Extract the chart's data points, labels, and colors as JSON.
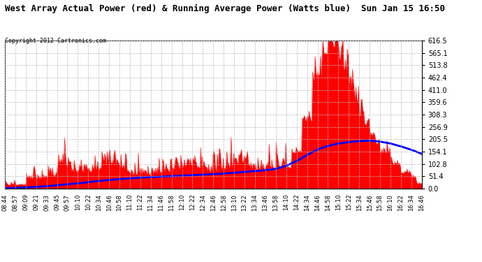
{
  "title": "West Array Actual Power (red) & Running Average Power (Watts blue)  Sun Jan 15 16:50",
  "copyright": "Copyright 2012 Cartronics.com",
  "ylim": [
    0,
    616.5
  ],
  "yticks": [
    0.0,
    51.4,
    102.8,
    154.1,
    205.5,
    256.9,
    308.3,
    359.6,
    411.0,
    462.4,
    513.8,
    565.1,
    616.5
  ],
  "xlabel_times": [
    "08:44",
    "08:57",
    "09:09",
    "09:21",
    "09:33",
    "09:45",
    "09:57",
    "10:10",
    "10:22",
    "10:34",
    "10:46",
    "10:58",
    "11:10",
    "11:22",
    "11:34",
    "11:46",
    "11:58",
    "12:10",
    "12:22",
    "12:34",
    "12:46",
    "12:58",
    "13:10",
    "13:22",
    "13:34",
    "13:46",
    "13:58",
    "14:10",
    "14:22",
    "14:34",
    "14:46",
    "14:58",
    "15:10",
    "15:22",
    "15:34",
    "15:46",
    "15:58",
    "16:10",
    "16:22",
    "16:34",
    "16:46"
  ],
  "bg_color": "#ffffff",
  "plot_bg_color": "#ffffff",
  "actual_color": "#ff0000",
  "avg_color": "#0000ff",
  "grid_color": "#bbbbbb",
  "border_color": "#000000",
  "title_fontsize": 9,
  "copyright_fontsize": 6
}
